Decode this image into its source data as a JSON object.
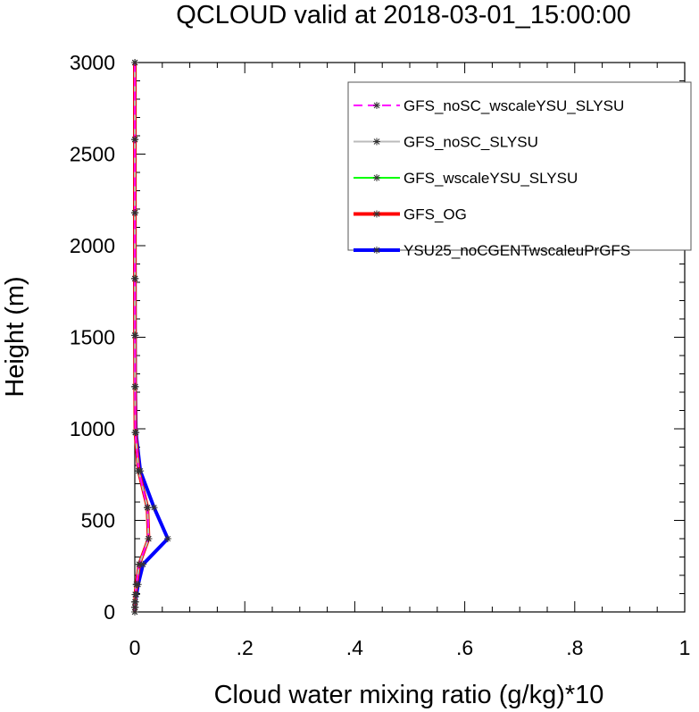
{
  "chart_data": {
    "type": "line",
    "title": "QCLOUD valid at 2018-03-01_15:00:00",
    "xlabel": "Cloud water mixing ratio (g/kg)*10",
    "ylabel": "Height (m)",
    "xlim": [
      0,
      1
    ],
    "ylim": [
      0,
      3000
    ],
    "xticks": [
      0,
      0.2,
      0.4,
      0.6,
      0.8,
      1
    ],
    "xtick_labels": [
      "0",
      ".2",
      ".4",
      ".6",
      ".8",
      "1"
    ],
    "yticks": [
      0,
      500,
      1000,
      1500,
      2000,
      2500,
      3000
    ],
    "ytick_labels": [
      "0",
      "500",
      "1000",
      "1500",
      "2000",
      "2500",
      "3000"
    ],
    "grid": false,
    "legend_position": "top-right",
    "heights": [
      0,
      25,
      55,
      95,
      150,
      260,
      400,
      570,
      770,
      980,
      1230,
      1510,
      1820,
      2180,
      2580,
      3000
    ],
    "series": [
      {
        "name": "GFS_noSC_wscaleYSU_SLYSU",
        "color": "#ff00ff",
        "style": "dashed",
        "width": 2,
        "values": [
          0,
          0.0002,
          0.0005,
          0.001,
          0.003,
          0.008,
          0.025,
          0.023,
          0.007,
          0.001,
          0.0005,
          0.0003,
          0.0002,
          0.0001,
          0.0001,
          0.0001
        ]
      },
      {
        "name": "GFS_noSC_SLYSU",
        "color": "#bbbbbb",
        "style": "solid",
        "width": 2,
        "values": [
          0,
          0.0002,
          0.0005,
          0.001,
          0.003,
          0.008,
          0.025,
          0.023,
          0.007,
          0.001,
          0.0005,
          0.0003,
          0.0002,
          0.0001,
          0.0001,
          0.0001
        ]
      },
      {
        "name": "GFS_wscaleYSU_SLYSU",
        "color": "#00ff00",
        "style": "solid",
        "width": 2,
        "values": [
          0,
          0.0002,
          0.0005,
          0.001,
          0.003,
          0.008,
          0.025,
          0.023,
          0.007,
          0.001,
          0.0005,
          0.0003,
          0.0002,
          0.0001,
          0.0001,
          0.0001
        ]
      },
      {
        "name": "GFS_OG",
        "color": "#ff0000",
        "style": "solid",
        "width": 4,
        "values": [
          0,
          0.0002,
          0.0005,
          0.001,
          0.003,
          0.008,
          0.025,
          0.023,
          0.007,
          0.001,
          0.0005,
          0.0003,
          0.0002,
          0.0001,
          0.0001,
          0.0001
        ]
      },
      {
        "name": "YSU25_noCGENTwscaleuPrGFS",
        "color": "#0000ff",
        "style": "solid",
        "width": 4,
        "values": [
          0,
          0.0003,
          0.001,
          0.003,
          0.006,
          0.015,
          0.06,
          0.035,
          0.01,
          0.002,
          0.0008,
          0.0004,
          0.0002,
          0.0001,
          0.0001,
          0.0001
        ]
      }
    ]
  }
}
